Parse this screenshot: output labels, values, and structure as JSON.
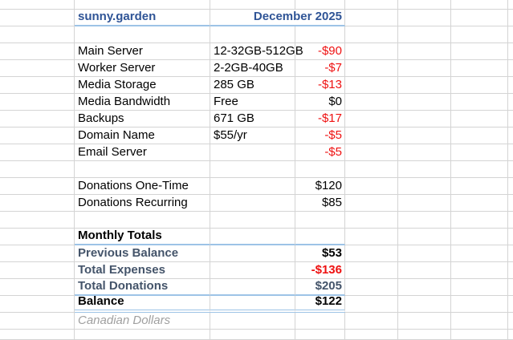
{
  "header": {
    "title": "sunny.garden",
    "period": "December 2025"
  },
  "expenses": [
    {
      "label": "Main Server",
      "detail": "12-32GB-512GB",
      "amount": "-$90"
    },
    {
      "label": "Worker Server",
      "detail": "2-2GB-40GB",
      "amount": "-$7"
    },
    {
      "label": "Media Storage",
      "detail": "285 GB",
      "amount": "-$13"
    },
    {
      "label": "Media Bandwidth",
      "detail": "Free",
      "amount": "$0"
    },
    {
      "label": "Backups",
      "detail": "671 GB",
      "amount": "-$17"
    },
    {
      "label": "Domain Name",
      "detail": "$55/yr",
      "amount": "-$5"
    },
    {
      "label": "Email Server",
      "detail": "",
      "amount": "-$5"
    }
  ],
  "donations": [
    {
      "label": "Donations One-Time",
      "amount": "$120"
    },
    {
      "label": "Donations Recurring",
      "amount": "$85"
    }
  ],
  "totals": {
    "header": "Monthly Totals",
    "rows": [
      {
        "label": "Previous Balance",
        "amount": "$53"
      },
      {
        "label": "Total Expenses",
        "amount": "-$136"
      },
      {
        "label": "Total Donations",
        "amount": "$205"
      },
      {
        "label": "Balance",
        "amount": "$122"
      }
    ]
  },
  "footnote": "Canadian Dollars",
  "colors": {
    "heading_text": "#2F5496",
    "totals_text": "#44546A",
    "negative_amount": "#EE1111",
    "gridline": "#D4D4D4",
    "accent_border": "#9DC3E6",
    "footnote_text": "#A0A0A0"
  }
}
